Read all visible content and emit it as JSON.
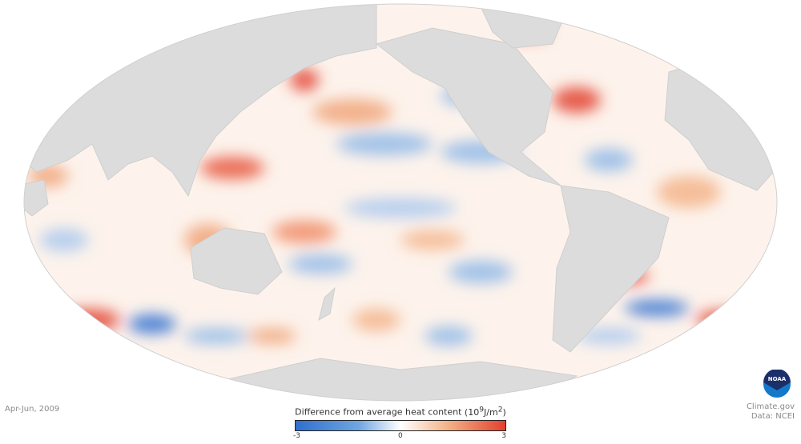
{
  "period": "Apr-Jun, 2009",
  "legend": {
    "title": "Difference from average heat content",
    "unit_prefix": "(10",
    "unit_exp": "9",
    "unit_mid": "J/m",
    "unit_exp2": "2",
    "unit_suffix": ")",
    "ticks": [
      "-3",
      "0",
      "3"
    ],
    "colors": {
      "low": "#2f6fd0",
      "mid": "#ffffff",
      "high": "#e2412e"
    }
  },
  "credits": {
    "source": "Climate.gov",
    "data": "Data: NCEI"
  },
  "logo_text": "NOAA"
}
